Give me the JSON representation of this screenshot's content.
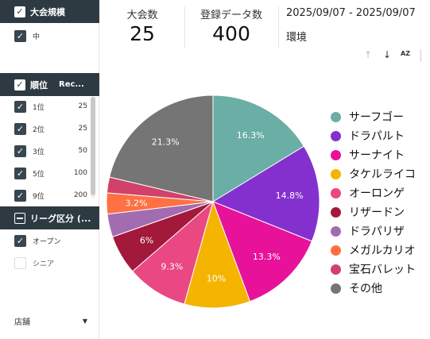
{
  "filters": {
    "tournament_size": {
      "header": "大会規模",
      "items": [
        {
          "label": "中",
          "checked": true
        }
      ]
    },
    "rank": {
      "header": "順位",
      "col_header": "Rec...",
      "items": [
        {
          "label": "1位",
          "value": "25",
          "checked": true
        },
        {
          "label": "2位",
          "value": "25",
          "checked": true
        },
        {
          "label": "3位",
          "value": "50",
          "checked": true
        },
        {
          "label": "5位",
          "value": "100",
          "checked": true
        },
        {
          "label": "9位",
          "value": "200",
          "checked": true
        }
      ]
    },
    "league": {
      "header": "リーグ区分 (...",
      "items": [
        {
          "label": "オープン",
          "checked": true
        },
        {
          "label": "シニア",
          "checked": false
        }
      ]
    },
    "store": {
      "label": "店舗"
    }
  },
  "metrics": {
    "tournaments": {
      "label": "大会数",
      "value": "25"
    },
    "records": {
      "label": "登録データ数",
      "value": "400"
    }
  },
  "date_range": "2025/09/07 - 2025/09/07",
  "environment_label": "環境",
  "toolbar": {
    "sort_az": "AZ"
  },
  "icons": {
    "sort_up": "arrow-up-icon",
    "sort_down": "arrow-down-icon",
    "sort_alpha": "sort-az-icon",
    "dropdown": "caret-down-icon"
  },
  "chart_data": {
    "type": "pie",
    "title": "",
    "slices": [
      {
        "name": "サーフゴー",
        "value": 16.3,
        "label": "16.3%",
        "color": "#6aaea5"
      },
      {
        "name": "ドラパルト",
        "value": 14.8,
        "label": "14.8%",
        "color": "#8430ce"
      },
      {
        "name": "サーナイト",
        "value": 13.3,
        "label": "13.3%",
        "color": "#e8129a"
      },
      {
        "name": "タケルライコ",
        "value": 10,
        "label": "10%",
        "color": "#f4b400"
      },
      {
        "name": "オーロンゲ",
        "value": 9.3,
        "label": "9.3%",
        "color": "#ea4882"
      },
      {
        "name": "リザードン",
        "value": 6,
        "label": "6%",
        "color": "#a3193b"
      },
      {
        "name": "ドラパリザ",
        "value": 3.5,
        "label": "",
        "color": "#a46cb0"
      },
      {
        "name": "メガルカリオ",
        "value": 3.2,
        "label": "3.2%",
        "color": "#ff7043"
      },
      {
        "name": "宝石バレット",
        "value": 2.4,
        "label": "",
        "color": "#d1416a"
      },
      {
        "name": "その他",
        "value": 21.3,
        "label": "21.3%",
        "color": "#757575"
      }
    ],
    "legend_position": "right"
  }
}
